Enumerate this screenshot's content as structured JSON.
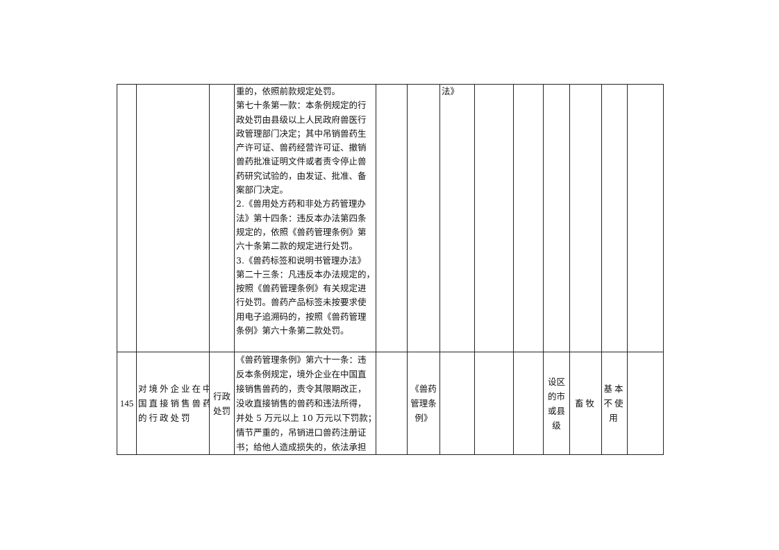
{
  "rows": [
    {
      "number": "",
      "item": [],
      "type": [],
      "basis": [
        "重的，依照前款规定处罚。",
        "第七十条第一款：本条例规定的行",
        "政处罚由县级以上人民政府兽医行",
        "政管理部门决定；其中吊销兽药生",
        "产许可证、兽药经营许可证、撤销",
        "兽药批准证明文件或者责令停止兽",
        "药研究试验的，由发证、批准、备",
        "案部门决定。",
        "2.《兽用处方药和非处方药管理办",
        "法》第十四条：违反本办法第四条",
        "规定的，依照《兽药管理条例》第",
        "六十条第二款的规定进行处罚。",
        "3.《兽药标签和说明书管理办法》",
        "第二十三条：凡违反本办法规定的，",
        "按照《兽药管理条例》有关规定进",
        "行处罚。兽药产品标签未按要求使",
        "用电子追溯码的，按照《兽药管理",
        "条例》第六十条第二款处罚。"
      ],
      "col7": [
        "法》"
      ],
      "source": [],
      "level": [],
      "dept": "",
      "usage": []
    },
    {
      "number": "145",
      "item": [
        "对境外企业在中",
        "国直接销售兽药",
        "的行政处罚"
      ],
      "type": [
        "行政",
        "处罚"
      ],
      "basis": [
        "《兽药管理条例》第六十一条：违",
        "反本条例规定，境外企业在中国直",
        "接销售兽药的，责令其限期改正，",
        "没收直接销售的兽药和违法所得，",
        "并处 5 万元以上 10 万元以下罚款；",
        "情节严重的，吊销进口兽药注册证",
        "书；给他人造成损失的，依法承担"
      ],
      "col7": [],
      "source": [
        "《兽药",
        "管理条",
        "例》"
      ],
      "level": [
        "设区",
        "的市",
        "或县",
        "级"
      ],
      "dept": "畜牧",
      "usage": [
        "基本",
        "不使",
        "用"
      ]
    }
  ]
}
